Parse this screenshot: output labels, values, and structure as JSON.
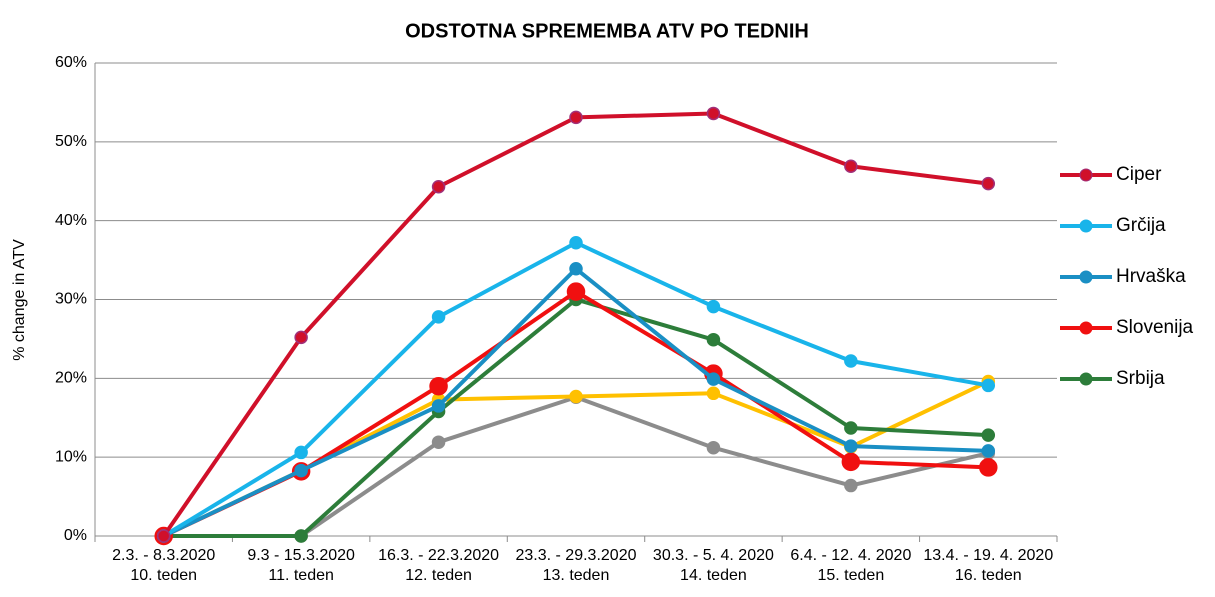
{
  "chart_data": {
    "type": "line",
    "title": "ODSTOTNA SPREMEMBA ATV PO TEDNIH",
    "y_label": "% change in ATV",
    "categories": [
      [
        "2.3. - 8.3.2020",
        "10. teden"
      ],
      [
        "9.3 - 15.3.2020",
        "11. teden"
      ],
      [
        "16.3. - 22.3.2020",
        "12. teden"
      ],
      [
        "23.3. - 29.3.2020",
        "13. teden"
      ],
      [
        "30.3. - 5. 4. 2020",
        "14. teden"
      ],
      [
        "6.4. - 12. 4. 2020",
        "15. teden"
      ],
      [
        "13.4. - 19. 4. 2020",
        "16. teden"
      ]
    ],
    "series": [
      {
        "name": "Ciper",
        "color": "#d0102a",
        "values": [
          0,
          25.2,
          44.3,
          53.1,
          53.6,
          46.9,
          44.7
        ]
      },
      {
        "name": "Grčija",
        "color": "#19b4ea",
        "values": [
          0,
          10.6,
          27.8,
          37.2,
          29.1,
          22.2,
          19.1
        ]
      },
      {
        "name": "Hrvaška",
        "color": "#1a8fc4",
        "values": [
          0,
          8.3,
          16.5,
          33.9,
          19.9,
          11.4,
          10.8
        ]
      },
      {
        "name": "Slovenija",
        "color": "#f01010",
        "values": [
          0,
          8.2,
          19.0,
          31.0,
          20.6,
          9.4,
          8.7
        ]
      },
      {
        "name": "Srbija",
        "color": "#2d7d3a",
        "values": [
          0,
          0,
          15.8,
          30.0,
          24.9,
          13.7,
          12.8
        ]
      },
      {
        "color": "#ffc000",
        "values": [
          0,
          8.3,
          17.3,
          17.7,
          18.1,
          11.3,
          19.6
        ]
      },
      {
        "color": "#8c8c8c",
        "values": [
          0,
          0,
          11.9,
          17.6,
          11.2,
          6.4,
          10.5
        ]
      }
    ],
    "ylim": [
      0,
      60
    ],
    "yticks": [
      {
        "value": 0,
        "label": "0%"
      },
      {
        "value": 10,
        "label": "10%"
      },
      {
        "value": 20,
        "label": "20%"
      },
      {
        "value": 30,
        "label": "30%"
      },
      {
        "value": 40,
        "label": "40%"
      },
      {
        "value": 50,
        "label": "50%"
      },
      {
        "value": 60,
        "label": "60%"
      }
    ],
    "grid": true,
    "legend": "right"
  }
}
